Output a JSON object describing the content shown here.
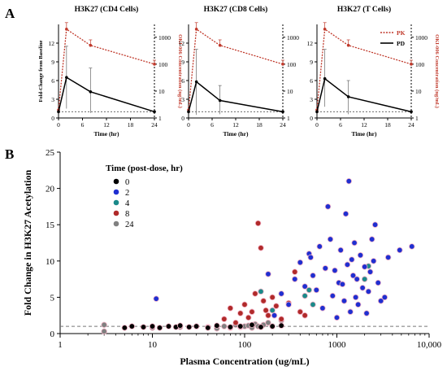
{
  "panel_labels": {
    "a": "A",
    "b": "B"
  },
  "chart_data": [
    {
      "type": "line",
      "title": "H3K27 (CD4 Cells)",
      "xlabel": "Time (hr)",
      "ylabel": "Fold-Change from Baseline",
      "y2label": "OKI-006 Concentration (ng/mL)",
      "x": [
        0,
        2,
        8,
        24
      ],
      "xlim": [
        0,
        24
      ],
      "xticks": [
        0,
        6,
        12,
        18,
        24
      ],
      "ylim": [
        0,
        15
      ],
      "yticks": [
        0,
        3,
        6,
        9,
        12
      ],
      "y2_scale": "log",
      "y2lim": [
        1,
        3000
      ],
      "y2ticks": [
        1,
        10,
        100,
        1000
      ],
      "baseline": 1,
      "series": [
        {
          "name": "PK",
          "axis": "y2",
          "color": "#c0392b",
          "style": "dotted",
          "values": [
            2,
            2000,
            500,
            100
          ],
          "err_upper": [
            2,
            3500,
            800,
            140
          ]
        },
        {
          "name": "PD",
          "axis": "y",
          "color": "#000000",
          "style": "solid",
          "values": [
            1,
            6.5,
            4.2,
            1.0
          ],
          "err_upper": [
            1,
            11.5,
            8.0,
            1.1
          ],
          "err_lower": [
            1,
            1.5,
            0.8,
            0.9
          ]
        }
      ]
    },
    {
      "type": "line",
      "title": "H3K27 (CD8 Cells)",
      "xlabel": "Time (hr)",
      "x": [
        0,
        2,
        8,
        24
      ],
      "xlim": [
        0,
        24
      ],
      "xticks": [
        0,
        6,
        12,
        18,
        24
      ],
      "ylim": [
        0,
        15
      ],
      "yticks": [
        0,
        3,
        6,
        9,
        12
      ],
      "y2_scale": "log",
      "y2lim": [
        1,
        3000
      ],
      "y2ticks": [
        1,
        10,
        100,
        1000
      ],
      "baseline": 1,
      "series": [
        {
          "name": "PK",
          "axis": "y2",
          "color": "#c0392b",
          "style": "dotted",
          "values": [
            2,
            2000,
            500,
            100
          ],
          "err_upper": [
            2,
            3500,
            800,
            140
          ]
        },
        {
          "name": "PD",
          "axis": "y",
          "color": "#000000",
          "style": "solid",
          "values": [
            1,
            5.8,
            2.8,
            1.0
          ],
          "err_upper": [
            1,
            11.0,
            5.2,
            1.1
          ],
          "err_lower": [
            1,
            0.5,
            0.6,
            0.9
          ]
        }
      ]
    },
    {
      "type": "line",
      "title": "H3K27 (T Cells)",
      "xlabel": "Time (hr)",
      "y2label": "OKI-006 Concentration (ng/mL)",
      "x": [
        0,
        2,
        8,
        24
      ],
      "xlim": [
        0,
        24
      ],
      "xticks": [
        0,
        6,
        12,
        18,
        24
      ],
      "ylim": [
        0,
        15
      ],
      "yticks": [
        0,
        3,
        6,
        9,
        12
      ],
      "y2_scale": "log",
      "y2lim": [
        1,
        3000
      ],
      "y2ticks": [
        1,
        10,
        100,
        1000
      ],
      "baseline": 1,
      "legend": "top-right",
      "series": [
        {
          "name": "PK",
          "axis": "y2",
          "color": "#c0392b",
          "style": "dotted",
          "values": [
            2,
            2000,
            500,
            100
          ],
          "err_upper": [
            2,
            3500,
            800,
            140
          ]
        },
        {
          "name": "PD",
          "axis": "y",
          "color": "#000000",
          "style": "solid",
          "values": [
            1,
            6.3,
            3.4,
            1.0
          ],
          "err_upper": [
            1,
            11.0,
            6.0,
            1.1
          ],
          "err_lower": [
            1,
            1.8,
            0.6,
            0.9
          ]
        }
      ]
    },
    {
      "type": "scatter",
      "xlabel": "Plasma Concentration (ug/mL)",
      "ylabel": "Fold Change in H3K27 Acetylation",
      "x_scale": "log",
      "xlim": [
        1,
        10000
      ],
      "xticks": [
        1,
        10,
        100,
        1000,
        10000
      ],
      "xtick_labels": [
        "1",
        "10",
        "100",
        "1000",
        "10,000"
      ],
      "ylim": [
        0,
        25
      ],
      "yticks": [
        0,
        5,
        10,
        15,
        20,
        25
      ],
      "baseline": 1,
      "legend": "top-left",
      "legend_title": "Time (post-dose, hr)",
      "series": [
        {
          "name": "0",
          "color": "#000000",
          "points": [
            [
              5,
              0.8
            ],
            [
              6,
              1.0
            ],
            [
              8,
              0.9
            ],
            [
              10,
              1.0
            ],
            [
              12,
              0.8
            ],
            [
              15,
              1.0
            ],
            [
              18,
              0.9
            ],
            [
              20,
              1.1
            ],
            [
              25,
              0.9
            ],
            [
              30,
              1.0
            ],
            [
              40,
              0.8
            ],
            [
              50,
              1.1
            ],
            [
              70,
              0.9
            ],
            [
              90,
              1.0
            ],
            [
              120,
              1.2
            ],
            [
              150,
              0.9
            ],
            [
              200,
              1.0
            ],
            [
              250,
              1.1
            ]
          ]
        },
        {
          "name": "2",
          "color": "#1f2fd1",
          "points": [
            [
              11,
              4.8
            ],
            [
              180,
              8.2
            ],
            [
              210,
              2.5
            ],
            [
              250,
              5.5
            ],
            [
              300,
              4.0
            ],
            [
              350,
              7.5
            ],
            [
              400,
              9.8
            ],
            [
              450,
              6.5
            ],
            [
              500,
              11.0
            ],
            [
              520,
              10.5
            ],
            [
              550,
              8.0
            ],
            [
              600,
              6.0
            ],
            [
              650,
              12.0
            ],
            [
              700,
              3.5
            ],
            [
              750,
              9.0
            ],
            [
              800,
              17.5
            ],
            [
              850,
              13.0
            ],
            [
              900,
              5.2
            ],
            [
              950,
              8.7
            ],
            [
              1000,
              2.2
            ],
            [
              1050,
              7.0
            ],
            [
              1100,
              11.5
            ],
            [
              1150,
              6.8
            ],
            [
              1200,
              4.5
            ],
            [
              1250,
              16.5
            ],
            [
              1300,
              9.5
            ],
            [
              1350,
              21.0
            ],
            [
              1400,
              3.0
            ],
            [
              1450,
              10.2
            ],
            [
              1500,
              8.0
            ],
            [
              1550,
              12.5
            ],
            [
              1600,
              5.0
            ],
            [
              1650,
              7.5
            ],
            [
              1700,
              4.0
            ],
            [
              1800,
              10.8
            ],
            [
              1900,
              6.3
            ],
            [
              2000,
              9.2
            ],
            [
              2100,
              2.8
            ],
            [
              2200,
              5.8
            ],
            [
              2300,
              8.5
            ],
            [
              2400,
              13.0
            ],
            [
              2500,
              10.0
            ],
            [
              2600,
              15.0
            ],
            [
              2800,
              7.0
            ],
            [
              3000,
              4.5
            ],
            [
              3300,
              5.0
            ],
            [
              3600,
              10.5
            ],
            [
              4800,
              11.5
            ],
            [
              6500,
              12.0
            ]
          ]
        },
        {
          "name": "4",
          "color": "#1a8a8a",
          "points": [
            [
              150,
              5.8
            ],
            [
              200,
              3.2
            ],
            [
              450,
              5.2
            ],
            [
              500,
              6.0
            ],
            [
              550,
              4.0
            ],
            [
              2000,
              7.5
            ],
            [
              2200,
              9.3
            ]
          ]
        },
        {
          "name": "8",
          "color": "#b02a2a",
          "points": [
            [
              60,
              2.0
            ],
            [
              70,
              3.5
            ],
            [
              80,
              1.5
            ],
            [
              90,
              2.8
            ],
            [
              100,
              4.0
            ],
            [
              110,
              2.2
            ],
            [
              120,
              3.0
            ],
            [
              130,
              5.5
            ],
            [
              140,
              15.2
            ],
            [
              150,
              11.8
            ],
            [
              160,
              4.5
            ],
            [
              170,
              3.2
            ],
            [
              180,
              2.5
            ],
            [
              200,
              5.0
            ],
            [
              220,
              3.8
            ],
            [
              250,
              2.0
            ],
            [
              300,
              4.2
            ],
            [
              350,
              8.5
            ],
            [
              400,
              3.0
            ],
            [
              450,
              2.5
            ]
          ]
        },
        {
          "name": "24",
          "color": "#808080",
          "points": [
            [
              3,
              1.2
            ],
            [
              3,
              0.3
            ],
            [
              10,
              0.8
            ],
            [
              20,
              0.9
            ],
            [
              30,
              1.0
            ],
            [
              40,
              0.9
            ],
            [
              50,
              0.7
            ],
            [
              60,
              1.0
            ],
            [
              70,
              0.8
            ],
            [
              80,
              1.2
            ],
            [
              90,
              0.9
            ],
            [
              100,
              1.0
            ],
            [
              110,
              1.1
            ],
            [
              120,
              0.8
            ],
            [
              130,
              1.3
            ],
            [
              140,
              1.0
            ],
            [
              160,
              1.2
            ],
            [
              180,
              1.5
            ],
            [
              200,
              1.0
            ],
            [
              250,
              1.8
            ]
          ]
        }
      ]
    }
  ]
}
